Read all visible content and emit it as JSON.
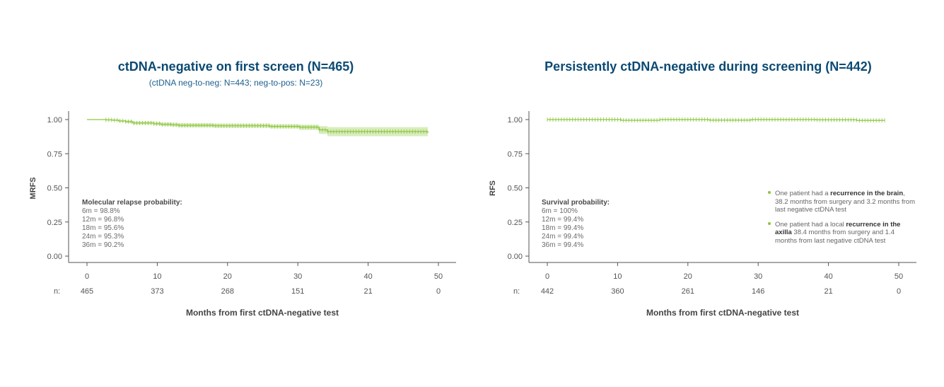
{
  "colors": {
    "title": "#0b4a73",
    "curve": "#8dc63f",
    "band": "#d9ecbf",
    "axis": "#555555"
  },
  "chart_data": [
    {
      "type": "line",
      "title": "ctDNA-negative on first screen (N=465)",
      "subtitle": "(ctDNA neg-to-neg: N=443; neg-to-pos: N=23)",
      "xlabel": "Months from first ctDNA-negative test",
      "ylabel": "MRFS",
      "xlim": [
        0,
        50
      ],
      "ylim": [
        0,
        1
      ],
      "xticks": [
        "0",
        "10",
        "20",
        "30",
        "40",
        "50"
      ],
      "yticks": [
        "0.00",
        "0.25",
        "0.50",
        "0.75",
        "1.00"
      ],
      "curve": {
        "x": [
          0,
          2.7,
          3.6,
          4.5,
          5.5,
          6.5,
          9.5,
          10.5,
          12,
          13,
          18,
          26,
          30.2,
          33,
          34.2,
          48.5
        ],
        "y": [
          1.0,
          0.998,
          0.996,
          0.99,
          0.985,
          0.975,
          0.97,
          0.965,
          0.962,
          0.958,
          0.955,
          0.95,
          0.945,
          0.925,
          0.912,
          0.902
        ],
        "ci_low": [
          1.0,
          0.993,
          0.99,
          0.982,
          0.975,
          0.964,
          0.958,
          0.952,
          0.948,
          0.943,
          0.94,
          0.935,
          0.925,
          0.895,
          0.878,
          0.865
        ],
        "ci_high": [
          1.0,
          1.0,
          1.0,
          0.997,
          0.994,
          0.987,
          0.983,
          0.978,
          0.976,
          0.972,
          0.97,
          0.965,
          0.962,
          0.952,
          0.945,
          0.94
        ]
      },
      "censor_x_range": [
        2.7,
        48.5
      ],
      "risk_label": "n:",
      "at_risk": [
        "465",
        "373",
        "268",
        "151",
        "21",
        "0"
      ],
      "annotation": {
        "heading": "Molecular relapse probability:",
        "lines": [
          "6m = 98.8%",
          "12m = 96.8%",
          "18m = 95.6%",
          "24m = 95.3%",
          "36m = 90.2%"
        ]
      }
    },
    {
      "type": "line",
      "title": "Persistently ctDNA-negative during screening (N=442)",
      "xlabel": "Months from first ctDNA-negative test",
      "ylabel": "RFS",
      "xlim": [
        0,
        50
      ],
      "ylim": [
        0,
        1
      ],
      "xticks": [
        "0",
        "10",
        "20",
        "30",
        "40",
        "50"
      ],
      "yticks": [
        "0.00",
        "0.25",
        "0.50",
        "0.75",
        "1.00"
      ],
      "curve": {
        "x": [
          0,
          10.5,
          16,
          23,
          29,
          38.2,
          44,
          48
        ],
        "y": [
          1.0,
          0.995,
          1.0,
          0.996,
          1.0,
          0.998,
          0.994,
          0.994
        ],
        "ci_low": [
          0.998,
          0.992,
          0.997,
          0.993,
          0.997,
          0.995,
          0.99,
          0.99
        ],
        "ci_high": [
          1.0,
          0.998,
          1.0,
          0.999,
          1.0,
          1.0,
          0.997,
          0.997
        ]
      },
      "censor_x_range": [
        0,
        48
      ],
      "risk_label": "n:",
      "at_risk": [
        "442",
        "360",
        "261",
        "146",
        "21",
        "0"
      ],
      "annotation": {
        "heading": "Survival probability:",
        "lines": [
          "6m = 100%",
          "12m = 99.4%",
          "18m = 99.4%",
          "24m = 99.4%",
          "36m = 99.4%"
        ]
      },
      "notes": [
        {
          "pre": "One patient had a ",
          "bold": "recurrence in the brain",
          "post": ", 38.2 months from surgery and 3.2 months from last negative ctDNA test"
        },
        {
          "pre": "One patient had a local ",
          "bold": "recurrence in the axilla",
          "post": " 38.4 months from surgery and 1.4 months from last negative ctDNA test"
        }
      ]
    }
  ]
}
